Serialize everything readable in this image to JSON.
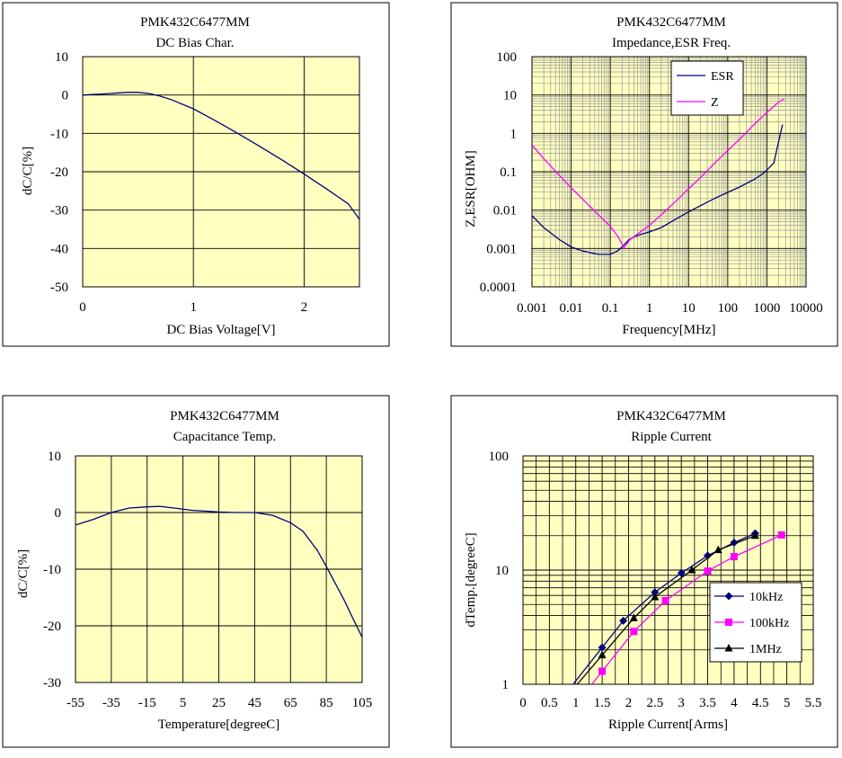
{
  "colors": {
    "plot_bg": "#ffffc0",
    "grid": "#000000",
    "minor_grid": "#9a9a9a",
    "curve": "#000080",
    "magenta": "#ff00ff",
    "black": "#000000"
  },
  "chart_data": [
    {
      "type": "line",
      "title": "PMK432C6477MM",
      "subtitle": "DC Bias Char.",
      "xlabel": "DC Bias Voltage[V]",
      "ylabel": "dC/C[%]",
      "xlim": [
        0,
        2.5
      ],
      "ylim": [
        -50,
        10
      ],
      "x_ticks": [
        0,
        1,
        2
      ],
      "y_ticks": [
        10,
        0,
        -10,
        -20,
        -30,
        -40,
        -50
      ],
      "grid": true,
      "series": [
        {
          "x": [
            0,
            0.2,
            0.4,
            0.5,
            0.6,
            0.7,
            0.8,
            1.0,
            1.2,
            1.4,
            1.6,
            1.8,
            2.0,
            2.2,
            2.4,
            2.5
          ],
          "y": [
            0,
            0.3,
            0.7,
            0.7,
            0.4,
            -0.3,
            -1.2,
            -3.6,
            -6.7,
            -10.0,
            -13.4,
            -16.9,
            -20.6,
            -24.4,
            -28.4,
            -32.4
          ]
        }
      ]
    },
    {
      "type": "line",
      "title": "PMK432C6477MM",
      "subtitle": "Impedance,ESR  Freq.",
      "xlabel": "Frequency[MHz]",
      "ylabel": "Z,ESR[OHM]",
      "xscale": "log",
      "yscale": "log",
      "xlim": [
        0.001,
        10000
      ],
      "ylim": [
        0.0001,
        100
      ],
      "x_ticks": [
        "0.001",
        "0.01",
        "0.1",
        "1",
        "10",
        "100",
        "1000",
        "10000"
      ],
      "y_ticks": [
        "100",
        "10",
        "1",
        "0.1",
        "0.01",
        "0.001",
        "0.0001"
      ],
      "grid": true,
      "legend": "top-center",
      "series": [
        {
          "name": "ESR",
          "x": [
            0.001,
            0.002,
            0.005,
            0.01,
            0.02,
            0.05,
            0.1,
            0.15,
            0.2,
            0.3,
            0.5,
            1,
            2,
            5,
            10,
            20,
            50,
            100,
            200,
            500,
            800,
            1000,
            1500,
            2500
          ],
          "y": [
            0.0072,
            0.0035,
            0.0017,
            0.0011,
            0.00085,
            0.0007,
            0.0007,
            0.00085,
            0.0011,
            0.0017,
            0.0022,
            0.0027,
            0.0035,
            0.006,
            0.009,
            0.013,
            0.021,
            0.029,
            0.04,
            0.065,
            0.09,
            0.11,
            0.17,
            1.7
          ]
        },
        {
          "name": "Z",
          "x": [
            0.001,
            0.002,
            0.005,
            0.01,
            0.02,
            0.05,
            0.1,
            0.15,
            0.2,
            0.22,
            0.25,
            0.3,
            0.5,
            1,
            2,
            5,
            10,
            20,
            50,
            100,
            200,
            500,
            1000,
            2000,
            2800
          ],
          "y": [
            0.5,
            0.22,
            0.08,
            0.038,
            0.019,
            0.0075,
            0.0038,
            0.0022,
            0.0013,
            0.00105,
            0.0012,
            0.0016,
            0.0024,
            0.004,
            0.0075,
            0.018,
            0.036,
            0.07,
            0.18,
            0.36,
            0.7,
            1.8,
            3.5,
            6.5,
            8
          ]
        }
      ]
    },
    {
      "type": "line",
      "title": "PMK432C6477MM",
      "subtitle": "Capacitance Temp.",
      "xlabel": "Temperature[degreeC]",
      "ylabel": "dC/C[%]",
      "xlim": [
        -55,
        105
      ],
      "ylim": [
        -30,
        10
      ],
      "x_ticks": [
        "-55",
        "-35",
        "-15",
        "5",
        "25",
        "45",
        "65",
        "85",
        "105"
      ],
      "y_ticks": [
        "10",
        "0",
        "-10",
        "-20",
        "-30"
      ],
      "grid": true,
      "series": [
        {
          "x": [
            -55,
            -45,
            -35,
            -25,
            -15,
            -8,
            0,
            10,
            25,
            35,
            45,
            55,
            65,
            72,
            80,
            85,
            90,
            95,
            100,
            105
          ],
          "y": [
            -2.2,
            -1.2,
            0,
            0.8,
            1.0,
            1.1,
            0.8,
            0.4,
            0.1,
            0,
            0,
            -0.5,
            -1.8,
            -3.3,
            -6.7,
            -9.5,
            -12.5,
            -15.5,
            -18.8,
            -22.0
          ]
        }
      ]
    },
    {
      "type": "scatter",
      "title": "PMK432C6477MM",
      "subtitle": "Ripple Current",
      "xlabel": "Ripple Current[Arms]",
      "ylabel": "dTemp.[degreeC]",
      "yscale": "log",
      "xlim": [
        0,
        5.5
      ],
      "ylim": [
        1,
        100
      ],
      "x_ticks": [
        "0",
        "0.5",
        "1",
        "1.5",
        "2",
        "2.5",
        "3",
        "3.5",
        "4",
        "4.5",
        "5",
        "5.5"
      ],
      "y_ticks": [
        "100",
        "10",
        "1"
      ],
      "grid": true,
      "legend": "bottom-right",
      "series": [
        {
          "name": "10kHz",
          "x": [
            1.5,
            1.9,
            2.5,
            3.0,
            3.5,
            4.0,
            4.4
          ],
          "y": [
            2.1,
            3.6,
            6.4,
            9.4,
            13.4,
            17.4,
            21
          ]
        },
        {
          "name": "100kHz",
          "x": [
            1.5,
            2.1,
            2.7,
            3.5,
            4.0,
            4.9
          ],
          "y": [
            1.3,
            2.9,
            5.4,
            9.8,
            13.1,
            20.3
          ]
        },
        {
          "name": "1MHz",
          "x": [
            1.5,
            2.1,
            2.5,
            3.2,
            3.7,
            4.4
          ],
          "y": [
            1.8,
            3.8,
            5.8,
            10,
            15,
            20
          ]
        }
      ]
    }
  ]
}
